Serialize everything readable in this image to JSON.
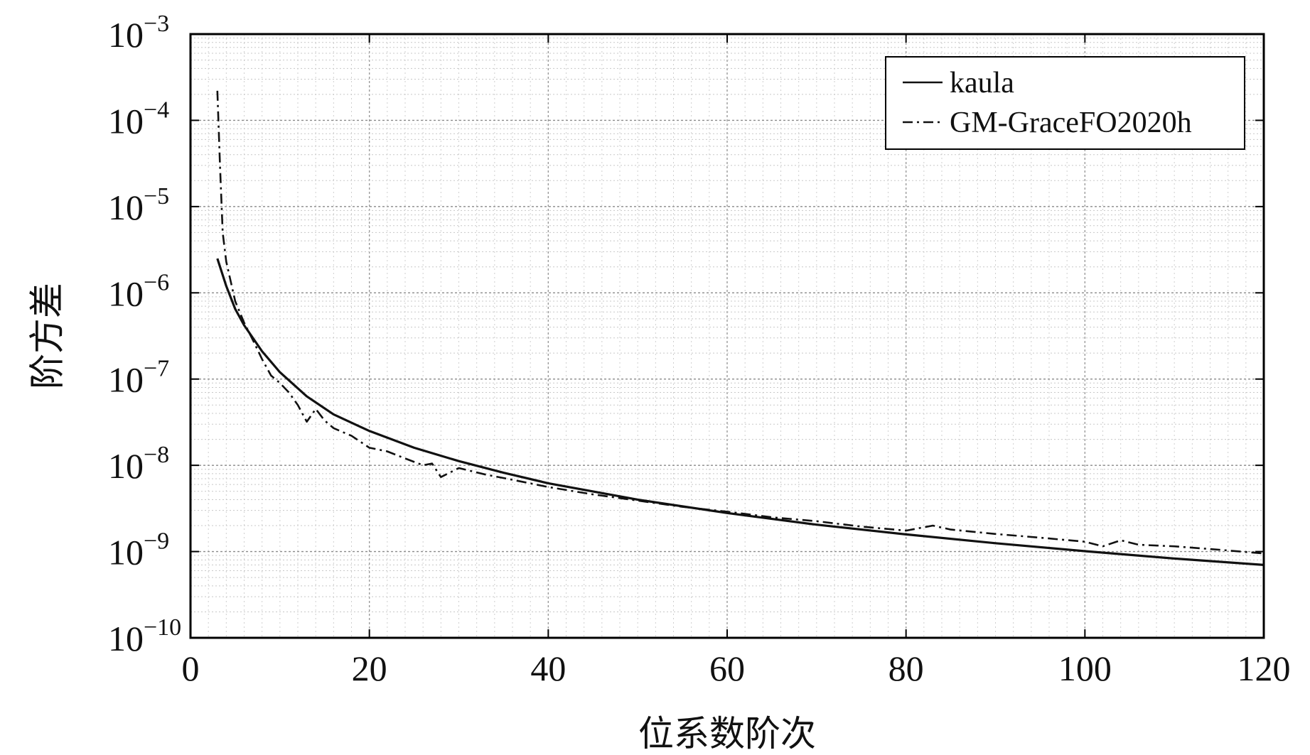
{
  "chart_data": {
    "type": "line",
    "title": "",
    "xlabel": "位系数阶次",
    "ylabel": "阶方差",
    "xlim": [
      0,
      120
    ],
    "ylim": [
      1e-10,
      0.001
    ],
    "yscale": "log",
    "grid": true,
    "legend_position": "top-right",
    "x_ticks": [
      {
        "value": 0,
        "label": "0"
      },
      {
        "value": 20,
        "label": "20"
      },
      {
        "value": 40,
        "label": "40"
      },
      {
        "value": 60,
        "label": "60"
      },
      {
        "value": 80,
        "label": "80"
      },
      {
        "value": 100,
        "label": "100"
      },
      {
        "value": 120,
        "label": "120"
      }
    ],
    "y_ticks": [
      {
        "exp": -3,
        "base": "10",
        "sup": "−3"
      },
      {
        "exp": -4,
        "base": "10",
        "sup": "−4"
      },
      {
        "exp": -5,
        "base": "10",
        "sup": "−5"
      },
      {
        "exp": -6,
        "base": "10",
        "sup": "−6"
      },
      {
        "exp": -7,
        "base": "10",
        "sup": "−7"
      },
      {
        "exp": -8,
        "base": "10",
        "sup": "−8"
      },
      {
        "exp": -9,
        "base": "10",
        "sup": "−9"
      },
      {
        "exp": -10,
        "base": "10",
        "sup": "−10"
      }
    ],
    "series": [
      {
        "name": "kaula",
        "line_style": "solid",
        "color": "#111111",
        "x": [
          3,
          4,
          5,
          6,
          8,
          10,
          13,
          16,
          20,
          25,
          30,
          35,
          40,
          50,
          60,
          70,
          80,
          90,
          100,
          110,
          120
        ],
        "y": [
          2.5e-06,
          1.2e-06,
          6.5e-07,
          4.2e-07,
          2.1e-07,
          1.2e-07,
          6.3e-08,
          3.9e-08,
          2.5e-08,
          1.6e-08,
          1.12e-08,
          8.2e-09,
          6.2e-09,
          4e-09,
          2.8e-09,
          2.05e-09,
          1.58e-09,
          1.25e-09,
          1.01e-09,
          8.3e-10,
          7e-10
        ]
      },
      {
        "name": "GM-GraceFO2020h",
        "line_style": "dashdot",
        "color": "#111111",
        "x": [
          3,
          3.3,
          3.6,
          4,
          5,
          6,
          7,
          8,
          9,
          10,
          11,
          12,
          13,
          14,
          15,
          16,
          18,
          20,
          22,
          24,
          26,
          27,
          28,
          30,
          33,
          36,
          40,
          45,
          50,
          55,
          60,
          65,
          70,
          75,
          80,
          83,
          85,
          90,
          95,
          100,
          102,
          104,
          106,
          110,
          115,
          120
        ],
        "y": [
          0.00022,
          3e-05,
          5e-06,
          2.3e-06,
          8e-07,
          4.5e-07,
          2.8e-07,
          1.7e-07,
          1.1e-07,
          9e-08,
          7e-08,
          5e-08,
          3.2e-08,
          4.5e-08,
          3.3e-08,
          2.7e-08,
          2.2e-08,
          1.6e-08,
          1.45e-08,
          1.2e-08,
          1e-08,
          1.05e-08,
          7.3e-09,
          9.3e-09,
          7.8e-09,
          6.8e-09,
          5.6e-09,
          4.6e-09,
          3.9e-09,
          3.3e-09,
          2.9e-09,
          2.5e-09,
          2.25e-09,
          1.95e-09,
          1.75e-09,
          2e-09,
          1.8e-09,
          1.6e-09,
          1.45e-09,
          1.3e-09,
          1.15e-09,
          1.35e-09,
          1.2e-09,
          1.15e-09,
          1.05e-09,
          9.5e-10
        ]
      }
    ]
  }
}
